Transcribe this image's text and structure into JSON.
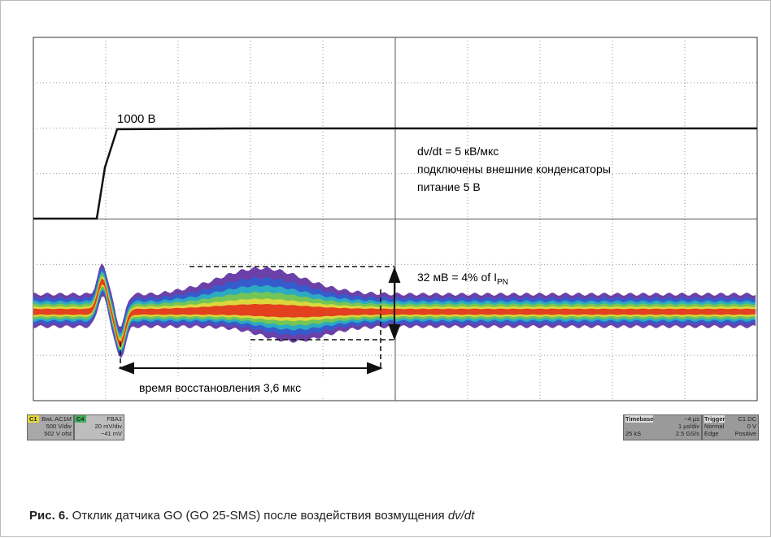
{
  "scope": {
    "step_label": "1000 В",
    "notes": [
      "dv/dt = 5 кВ/мкс",
      "подключены внешние конденсаторы",
      "питание 5 В"
    ],
    "amplitude": {
      "text": "32 мВ = 4% of I",
      "sub": "PN"
    },
    "recovery": "время восстановления 3,6 мкс"
  },
  "status": {
    "c1": {
      "tag": "C1",
      "lines": [
        "BwL AC1M",
        "500 V/div",
        "502 V ofst"
      ]
    },
    "c4": {
      "tag": "C4",
      "lines": [
        "FBA1",
        "20 mV/div",
        "−41 mV"
      ]
    },
    "timebase": {
      "title": "Timebase",
      "rows": [
        [
          "",
          "−4 µs"
        ],
        [
          "",
          "1 µs/div"
        ],
        [
          "25 kS",
          "2.5 GS/s"
        ]
      ]
    },
    "trigger": {
      "title": "Trigger",
      "rows": [
        [
          "",
          "C1 DC"
        ],
        [
          "Normal",
          "0 V"
        ],
        [
          "Edge",
          "Positive"
        ]
      ]
    }
  },
  "caption": {
    "label": "Рис. 6.",
    "text": "Отклик датчика GO (GO 25-SMS) после воздействия возмущения ",
    "italic": "dv/dt"
  }
}
